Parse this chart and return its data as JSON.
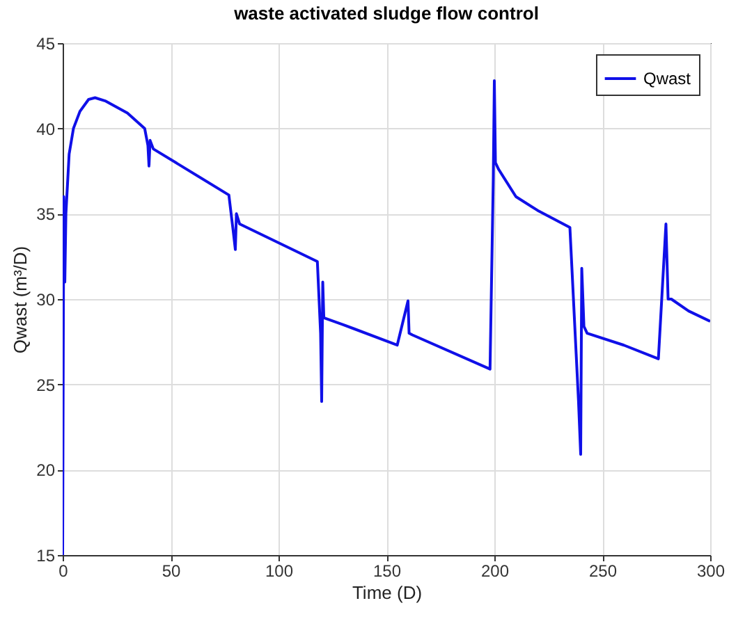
{
  "chart_data": {
    "type": "line",
    "title": "waste  activated  sludge flow  control",
    "xlabel": "Time (D)",
    "ylabel": "Qwast (m³/D)",
    "xlim": [
      0,
      300
    ],
    "xticks": [
      0,
      50,
      100,
      150,
      200,
      250,
      300
    ],
    "ylim": [
      15,
      45
    ],
    "yticks": [
      15,
      20,
      25,
      30,
      35,
      40,
      45
    ],
    "grid": true,
    "legend": "top right",
    "line_style": "solid",
    "marker": "none",
    "series": [
      {
        "name": "Qwast",
        "color": "#1010e8",
        "x": [
          0,
          0.5,
          1,
          1.5,
          3,
          5,
          8,
          12,
          15,
          20,
          30,
          38,
          39.5,
          40,
          40.5,
          42,
          77,
          79,
          80,
          80.5,
          82,
          118,
          119.5,
          120,
          120.5,
          121,
          130,
          155,
          160,
          160.5,
          162,
          198,
          199.5,
          200,
          200.5,
          202,
          210,
          220,
          235,
          239,
          240,
          240.5,
          241.5,
          243,
          260,
          276,
          279.5,
          280.5,
          282,
          290,
          300
        ],
        "values": [
          15,
          36,
          31,
          35,
          38.5,
          40,
          41,
          41.7,
          41.8,
          41.6,
          40.9,
          40,
          39,
          37.8,
          39.3,
          38.8,
          36.1,
          34,
          32.9,
          35,
          34.4,
          32.2,
          28,
          24,
          31,
          28.9,
          28.5,
          27.3,
          29.9,
          28,
          27.9,
          25.9,
          37,
          42.8,
          38,
          37.6,
          36,
          35.2,
          34.2,
          24,
          20.9,
          31.8,
          28.4,
          28,
          27.3,
          26.5,
          34.4,
          30,
          30,
          29.3,
          28.7
        ]
      }
    ]
  }
}
